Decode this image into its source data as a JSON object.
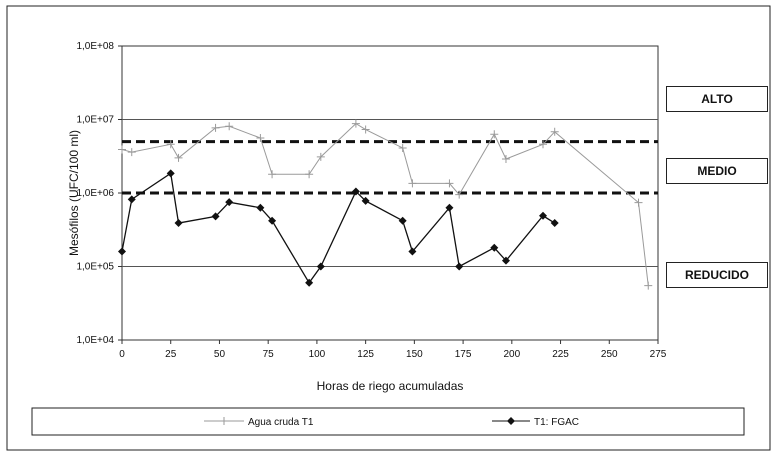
{
  "chart_data": {
    "type": "line",
    "xlabel": "Horas de riego acumuladas",
    "ylabel": "Mesófilos (UFC/100 ml)",
    "xlim": [
      0,
      275
    ],
    "x_ticks": [
      0,
      25,
      50,
      75,
      100,
      125,
      150,
      175,
      200,
      225,
      250,
      275
    ],
    "y_scale": "log",
    "ylim": [
      10000,
      100000000
    ],
    "y_ticks": [
      10000,
      100000,
      1000000,
      10000000,
      100000000
    ],
    "y_tick_labels": [
      "1,0E+04",
      "1,0E+05",
      "1,0E+06",
      "1,0E+07",
      "1,0E+08"
    ],
    "reference_lines": [
      {
        "value": 100000,
        "style": "solid"
      },
      {
        "value": 1000000,
        "style": "dashed"
      },
      {
        "value": 5000000,
        "style": "dashed"
      },
      {
        "value": 10000000,
        "style": "solid"
      }
    ],
    "level_labels": [
      "ALTO",
      "MEDIO",
      "REDUCIDO"
    ],
    "legend_position": "bottom",
    "series": [
      {
        "name": "Agua cruda T1",
        "marker": "plus",
        "color": "#9a9a9a",
        "points": [
          [
            0,
            3900000
          ],
          [
            5,
            3600000
          ],
          [
            25,
            4600000
          ],
          [
            29,
            3000000
          ],
          [
            48,
            7700000
          ],
          [
            55,
            8100000
          ],
          [
            71,
            5600000
          ],
          [
            77,
            1800000
          ],
          [
            96,
            1800000
          ],
          [
            102,
            3100000
          ],
          [
            120,
            8800000
          ],
          [
            125,
            7300000
          ],
          [
            144,
            4100000
          ],
          [
            149,
            1350000
          ],
          [
            168,
            1350000
          ],
          [
            173,
            950000
          ],
          [
            191,
            6300000
          ],
          [
            197,
            2900000
          ],
          [
            216,
            4600000
          ],
          [
            222,
            6800000
          ],
          [
            265,
            740000
          ],
          [
            270,
            55000
          ]
        ]
      },
      {
        "name": "T1: FGAC",
        "marker": "diamond",
        "color": "#111111",
        "points": [
          [
            0,
            160000
          ],
          [
            5,
            820000
          ],
          [
            25,
            1850000
          ],
          [
            29,
            390000
          ],
          [
            48,
            480000
          ],
          [
            55,
            750000
          ],
          [
            71,
            630000
          ],
          [
            77,
            420000
          ],
          [
            96,
            60000
          ],
          [
            102,
            100000
          ],
          [
            120,
            1050000
          ],
          [
            125,
            780000
          ],
          [
            144,
            420000
          ],
          [
            149,
            160000
          ],
          [
            168,
            630000
          ],
          [
            173,
            100000
          ],
          [
            191,
            180000
          ],
          [
            197,
            120000
          ],
          [
            216,
            490000
          ],
          [
            222,
            390000
          ]
        ]
      }
    ]
  }
}
